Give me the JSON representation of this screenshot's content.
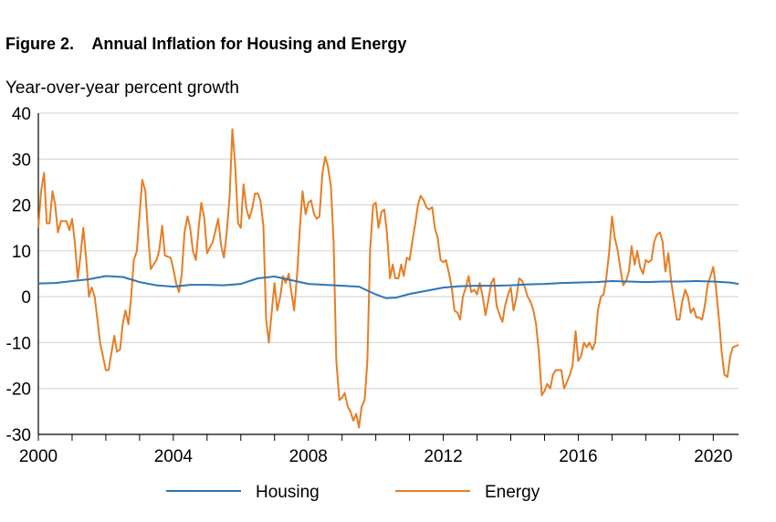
{
  "figure": {
    "number": "Figure 2.",
    "title": "Annual Inflation for Housing and Energy"
  },
  "chart_data": {
    "type": "line",
    "title": "Annual Inflation for Housing and Energy",
    "ylabel": "Year-over-year percent growth",
    "xlabel": "",
    "ylim": [
      -30,
      40
    ],
    "xlim": [
      2000,
      2020.75
    ],
    "yticks": [
      40,
      30,
      20,
      10,
      0,
      -10,
      -20,
      -30
    ],
    "xticks": [
      2000,
      2004,
      2008,
      2012,
      2016,
      2020
    ],
    "grid": "horizontal",
    "legend": "bottom",
    "series": [
      {
        "name": "Housing",
        "color": "#2e75b6",
        "points": [
          [
            2000.0,
            2.9
          ],
          [
            2000.5,
            3.0
          ],
          [
            2001.0,
            3.4
          ],
          [
            2001.5,
            3.8
          ],
          [
            2002.0,
            4.5
          ],
          [
            2002.5,
            4.3
          ],
          [
            2003.0,
            3.2
          ],
          [
            2003.5,
            2.5
          ],
          [
            2004.0,
            2.2
          ],
          [
            2004.5,
            2.6
          ],
          [
            2005.0,
            2.6
          ],
          [
            2005.5,
            2.5
          ],
          [
            2006.0,
            2.8
          ],
          [
            2006.5,
            4.0
          ],
          [
            2007.0,
            4.4
          ],
          [
            2007.5,
            3.6
          ],
          [
            2008.0,
            2.8
          ],
          [
            2008.5,
            2.6
          ],
          [
            2009.0,
            2.4
          ],
          [
            2009.5,
            2.2
          ],
          [
            2010.0,
            0.5
          ],
          [
            2010.3,
            -0.3
          ],
          [
            2010.6,
            -0.2
          ],
          [
            2011.0,
            0.6
          ],
          [
            2011.5,
            1.3
          ],
          [
            2012.0,
            2.0
          ],
          [
            2012.5,
            2.3
          ],
          [
            2013.0,
            2.4
          ],
          [
            2013.5,
            2.4
          ],
          [
            2014.0,
            2.5
          ],
          [
            2014.5,
            2.7
          ],
          [
            2015.0,
            2.8
          ],
          [
            2015.5,
            3.0
          ],
          [
            2016.0,
            3.1
          ],
          [
            2016.5,
            3.2
          ],
          [
            2017.0,
            3.4
          ],
          [
            2017.5,
            3.3
          ],
          [
            2018.0,
            3.2
          ],
          [
            2018.5,
            3.3
          ],
          [
            2019.0,
            3.3
          ],
          [
            2019.5,
            3.4
          ],
          [
            2020.0,
            3.3
          ],
          [
            2020.5,
            3.1
          ],
          [
            2020.75,
            2.8
          ]
        ]
      },
      {
        "name": "Energy",
        "color": "#e57e25",
        "points": [
          [
            2000.0,
            15
          ],
          [
            2000.08,
            23
          ],
          [
            2000.17,
            27
          ],
          [
            2000.25,
            16
          ],
          [
            2000.33,
            16
          ],
          [
            2000.42,
            23
          ],
          [
            2000.5,
            20
          ],
          [
            2000.58,
            14
          ],
          [
            2000.67,
            16.5
          ],
          [
            2000.83,
            16.5
          ],
          [
            2000.92,
            14.5
          ],
          [
            2001.0,
            17
          ],
          [
            2001.08,
            12
          ],
          [
            2001.17,
            4
          ],
          [
            2001.25,
            9
          ],
          [
            2001.33,
            15
          ],
          [
            2001.42,
            8
          ],
          [
            2001.5,
            0
          ],
          [
            2001.58,
            2
          ],
          [
            2001.67,
            0
          ],
          [
            2001.75,
            -5
          ],
          [
            2001.83,
            -10
          ],
          [
            2002.0,
            -16
          ],
          [
            2002.08,
            -16
          ],
          [
            2002.25,
            -8.5
          ],
          [
            2002.33,
            -12
          ],
          [
            2002.42,
            -11.5
          ],
          [
            2002.5,
            -6
          ],
          [
            2002.58,
            -3
          ],
          [
            2002.67,
            -6
          ],
          [
            2002.75,
            0
          ],
          [
            2002.83,
            8
          ],
          [
            2002.92,
            10
          ],
          [
            2003.0,
            18
          ],
          [
            2003.08,
            25.5
          ],
          [
            2003.17,
            23
          ],
          [
            2003.25,
            14
          ],
          [
            2003.33,
            6
          ],
          [
            2003.5,
            8
          ],
          [
            2003.58,
            10
          ],
          [
            2003.67,
            15.5
          ],
          [
            2003.75,
            9
          ],
          [
            2003.92,
            8.5
          ],
          [
            2004.0,
            6
          ],
          [
            2004.08,
            3
          ],
          [
            2004.17,
            1
          ],
          [
            2004.25,
            5
          ],
          [
            2004.33,
            14
          ],
          [
            2004.42,
            17.5
          ],
          [
            2004.5,
            15
          ],
          [
            2004.58,
            10
          ],
          [
            2004.67,
            8
          ],
          [
            2004.75,
            15
          ],
          [
            2004.83,
            20.5
          ],
          [
            2004.92,
            17
          ],
          [
            2005.0,
            9.5
          ],
          [
            2005.17,
            12
          ],
          [
            2005.33,
            17
          ],
          [
            2005.42,
            11
          ],
          [
            2005.5,
            8.5
          ],
          [
            2005.58,
            14
          ],
          [
            2005.67,
            22
          ],
          [
            2005.75,
            36.5
          ],
          [
            2005.83,
            29
          ],
          [
            2005.92,
            16
          ],
          [
            2006.0,
            15
          ],
          [
            2006.08,
            24.5
          ],
          [
            2006.17,
            19
          ],
          [
            2006.25,
            17
          ],
          [
            2006.33,
            19
          ],
          [
            2006.42,
            22.5
          ],
          [
            2006.5,
            22.5
          ],
          [
            2006.58,
            21
          ],
          [
            2006.67,
            15.5
          ],
          [
            2006.75,
            -5
          ],
          [
            2006.83,
            -10
          ],
          [
            2006.92,
            -3
          ],
          [
            2007.0,
            3
          ],
          [
            2007.08,
            -3
          ],
          [
            2007.17,
            0
          ],
          [
            2007.25,
            4.5
          ],
          [
            2007.33,
            3
          ],
          [
            2007.42,
            5
          ],
          [
            2007.5,
            1
          ],
          [
            2007.58,
            -3
          ],
          [
            2007.67,
            5
          ],
          [
            2007.75,
            15
          ],
          [
            2007.83,
            23
          ],
          [
            2007.92,
            18
          ],
          [
            2008.0,
            20.5
          ],
          [
            2008.08,
            21
          ],
          [
            2008.17,
            18
          ],
          [
            2008.25,
            17
          ],
          [
            2008.33,
            17.5
          ],
          [
            2008.42,
            27
          ],
          [
            2008.5,
            30.5
          ],
          [
            2008.58,
            28.5
          ],
          [
            2008.67,
            24
          ],
          [
            2008.75,
            12
          ],
          [
            2008.83,
            -14
          ],
          [
            2008.92,
            -22.5
          ],
          [
            2009.0,
            -22
          ],
          [
            2009.08,
            -21
          ],
          [
            2009.17,
            -24
          ],
          [
            2009.25,
            -25
          ],
          [
            2009.33,
            -27
          ],
          [
            2009.42,
            -25.5
          ],
          [
            2009.5,
            -28.5
          ],
          [
            2009.58,
            -24
          ],
          [
            2009.67,
            -22.5
          ],
          [
            2009.75,
            -14
          ],
          [
            2009.83,
            10
          ],
          [
            2009.92,
            20
          ],
          [
            2010.0,
            20.5
          ],
          [
            2010.08,
            15
          ],
          [
            2010.17,
            18.5
          ],
          [
            2010.25,
            19
          ],
          [
            2010.33,
            14
          ],
          [
            2010.42,
            4
          ],
          [
            2010.5,
            7
          ],
          [
            2010.58,
            4
          ],
          [
            2010.67,
            4
          ],
          [
            2010.75,
            7
          ],
          [
            2010.83,
            4.5
          ],
          [
            2010.92,
            8.5
          ],
          [
            2011.0,
            8
          ],
          [
            2011.08,
            12
          ],
          [
            2011.17,
            16
          ],
          [
            2011.25,
            20
          ],
          [
            2011.33,
            22
          ],
          [
            2011.42,
            21
          ],
          [
            2011.5,
            19.5
          ],
          [
            2011.58,
            19
          ],
          [
            2011.67,
            19.5
          ],
          [
            2011.75,
            15
          ],
          [
            2011.83,
            13
          ],
          [
            2011.92,
            8
          ],
          [
            2012.0,
            7.5
          ],
          [
            2012.08,
            8
          ],
          [
            2012.17,
            5
          ],
          [
            2012.25,
            2
          ],
          [
            2012.33,
            -3
          ],
          [
            2012.42,
            -3.5
          ],
          [
            2012.5,
            -5
          ],
          [
            2012.58,
            0
          ],
          [
            2012.67,
            2
          ],
          [
            2012.75,
            4.5
          ],
          [
            2012.83,
            1
          ],
          [
            2012.92,
            1.5
          ],
          [
            2013.0,
            0.5
          ],
          [
            2013.08,
            3
          ],
          [
            2013.17,
            0
          ],
          [
            2013.25,
            -4
          ],
          [
            2013.33,
            -1
          ],
          [
            2013.42,
            3
          ],
          [
            2013.5,
            4
          ],
          [
            2013.58,
            -2
          ],
          [
            2013.67,
            -4
          ],
          [
            2013.75,
            -5.5
          ],
          [
            2013.83,
            -2
          ],
          [
            2013.92,
            0.5
          ],
          [
            2014.0,
            2
          ],
          [
            2014.08,
            -3
          ],
          [
            2014.17,
            0
          ],
          [
            2014.25,
            4
          ],
          [
            2014.33,
            3.5
          ],
          [
            2014.42,
            2
          ],
          [
            2014.5,
            0
          ],
          [
            2014.58,
            -1
          ],
          [
            2014.67,
            -3
          ],
          [
            2014.75,
            -6
          ],
          [
            2014.83,
            -12
          ],
          [
            2014.92,
            -21.5
          ],
          [
            2015.0,
            -20.5
          ],
          [
            2015.08,
            -19
          ],
          [
            2015.17,
            -20
          ],
          [
            2015.25,
            -17
          ],
          [
            2015.33,
            -16
          ],
          [
            2015.42,
            -16
          ],
          [
            2015.5,
            -16
          ],
          [
            2015.58,
            -20
          ],
          [
            2015.67,
            -18.5
          ],
          [
            2015.75,
            -17
          ],
          [
            2015.83,
            -15
          ],
          [
            2015.92,
            -7.5
          ],
          [
            2016.0,
            -14
          ],
          [
            2016.08,
            -13
          ],
          [
            2016.17,
            -10
          ],
          [
            2016.25,
            -11
          ],
          [
            2016.33,
            -10
          ],
          [
            2016.42,
            -11.5
          ],
          [
            2016.5,
            -10
          ],
          [
            2016.58,
            -3
          ],
          [
            2016.67,
            0
          ],
          [
            2016.75,
            0.5
          ],
          [
            2016.83,
            4
          ],
          [
            2016.92,
            10
          ],
          [
            2017.0,
            17.5
          ],
          [
            2017.08,
            13
          ],
          [
            2017.17,
            10
          ],
          [
            2017.25,
            6
          ],
          [
            2017.33,
            2.5
          ],
          [
            2017.42,
            3.5
          ],
          [
            2017.5,
            5.5
          ],
          [
            2017.58,
            11
          ],
          [
            2017.67,
            7
          ],
          [
            2017.75,
            10
          ],
          [
            2017.83,
            6.5
          ],
          [
            2017.92,
            5
          ],
          [
            2018.0,
            8
          ],
          [
            2018.08,
            7.5
          ],
          [
            2018.17,
            8
          ],
          [
            2018.25,
            12
          ],
          [
            2018.33,
            13.5
          ],
          [
            2018.42,
            14
          ],
          [
            2018.5,
            12
          ],
          [
            2018.58,
            5.5
          ],
          [
            2018.67,
            9.5
          ],
          [
            2018.75,
            3.5
          ],
          [
            2018.83,
            -0.5
          ],
          [
            2018.92,
            -5
          ],
          [
            2019.0,
            -5
          ],
          [
            2019.08,
            -1
          ],
          [
            2019.17,
            1.5
          ],
          [
            2019.25,
            0
          ],
          [
            2019.33,
            -3.5
          ],
          [
            2019.42,
            -2.5
          ],
          [
            2019.5,
            -4.5
          ],
          [
            2019.58,
            -4.5
          ],
          [
            2019.67,
            -5
          ],
          [
            2019.75,
            -2
          ],
          [
            2019.83,
            2.5
          ],
          [
            2019.92,
            4.5
          ],
          [
            2020.0,
            6.5
          ],
          [
            2020.08,
            2
          ],
          [
            2020.17,
            -5
          ],
          [
            2020.25,
            -12
          ],
          [
            2020.33,
            -17
          ],
          [
            2020.42,
            -17.5
          ],
          [
            2020.5,
            -13
          ],
          [
            2020.58,
            -11
          ],
          [
            2020.75,
            -10.5
          ]
        ]
      }
    ]
  }
}
